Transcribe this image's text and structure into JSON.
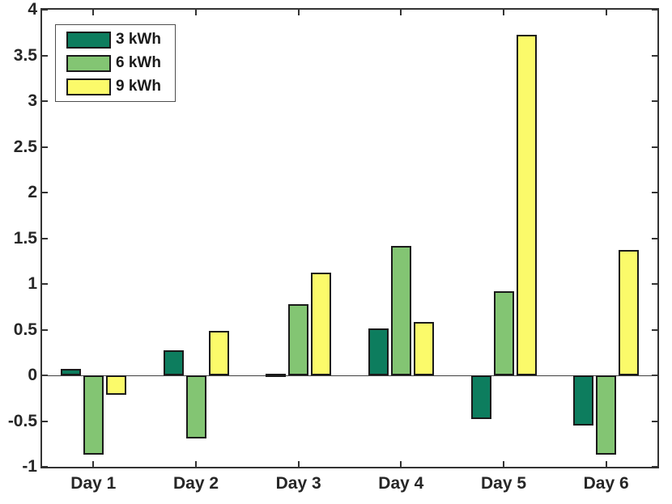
{
  "chart_data": {
    "type": "bar",
    "title": "",
    "xlabel": "",
    "ylabel": "",
    "categories": [
      "Day 1",
      "Day 2",
      "Day 3",
      "Day 4",
      "Day 5",
      "Day 6"
    ],
    "series": [
      {
        "name": "3 kWh",
        "color": "#0d7d5e",
        "values": [
          0.07,
          0.27,
          0.02,
          0.51,
          -0.48,
          -0.55
        ]
      },
      {
        "name": "6 kWh",
        "color": "#83c573",
        "values": [
          -0.87,
          -0.69,
          0.78,
          1.42,
          0.92,
          -0.87
        ]
      },
      {
        "name": "9 kWh",
        "color": "#fbfa6a",
        "values": [
          -0.21,
          0.49,
          1.12,
          0.58,
          3.73,
          1.37
        ]
      }
    ],
    "ylim": [
      -1,
      4
    ],
    "yticks": [
      -1,
      -0.5,
      0,
      0.5,
      1,
      1.5,
      2,
      2.5,
      3,
      3.5,
      4
    ],
    "grid": false,
    "legend_position": "top-left",
    "axis_color": "#333333",
    "bar_edge_color": "#1a1a1a",
    "baseline_value": 0
  }
}
